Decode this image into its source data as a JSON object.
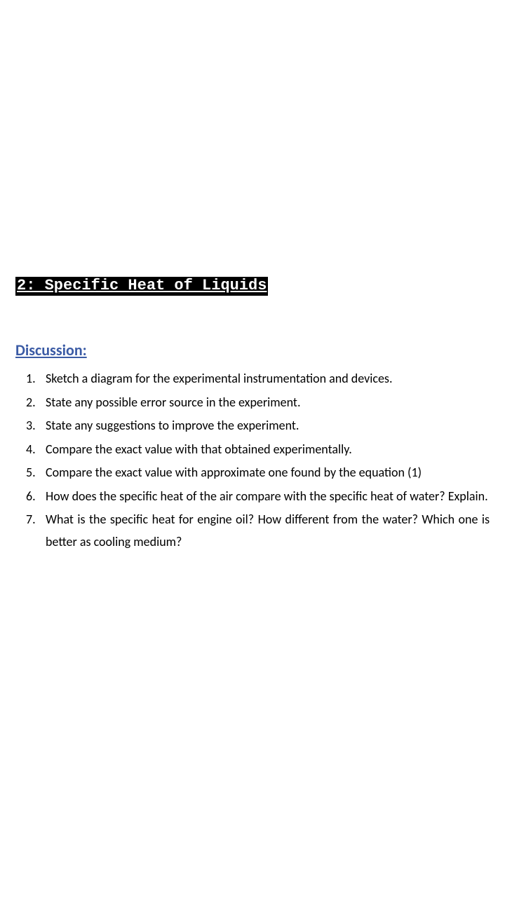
{
  "title": "2: Specific Heat of Liquids",
  "heading": "Discussion:",
  "items": [
    {
      "n": "1.",
      "t": "Sketch a diagram for the experimental instrumentation and devices."
    },
    {
      "n": "2.",
      "t": "State any possible error source in the experiment."
    },
    {
      "n": "3.",
      "t": "State any suggestions to improve the experiment."
    },
    {
      "n": "4.",
      "t": "Compare the exact value with that obtained experimentally."
    },
    {
      "n": "5.",
      "t": "Compare the exact value with approximate one found by the equation (1)"
    },
    {
      "n": "6.",
      "t": "How does the specific heat of the air compare with the specific heat of water? Explain."
    },
    {
      "n": "7.",
      "t": "What is the specific heat for engine oil? How different from the water? Which one is better as cooling medium?"
    }
  ],
  "colors": {
    "title_bg": "#000000",
    "title_fg": "#ffffff",
    "heading_fg": "#3b5ba5",
    "body_fg": "#000000",
    "page_bg": "#ffffff"
  },
  "typography": {
    "title_font": "Courier New",
    "body_font": "Calibri",
    "title_size_pt": 17,
    "heading_size_pt": 17,
    "body_size_pt": 14
  }
}
